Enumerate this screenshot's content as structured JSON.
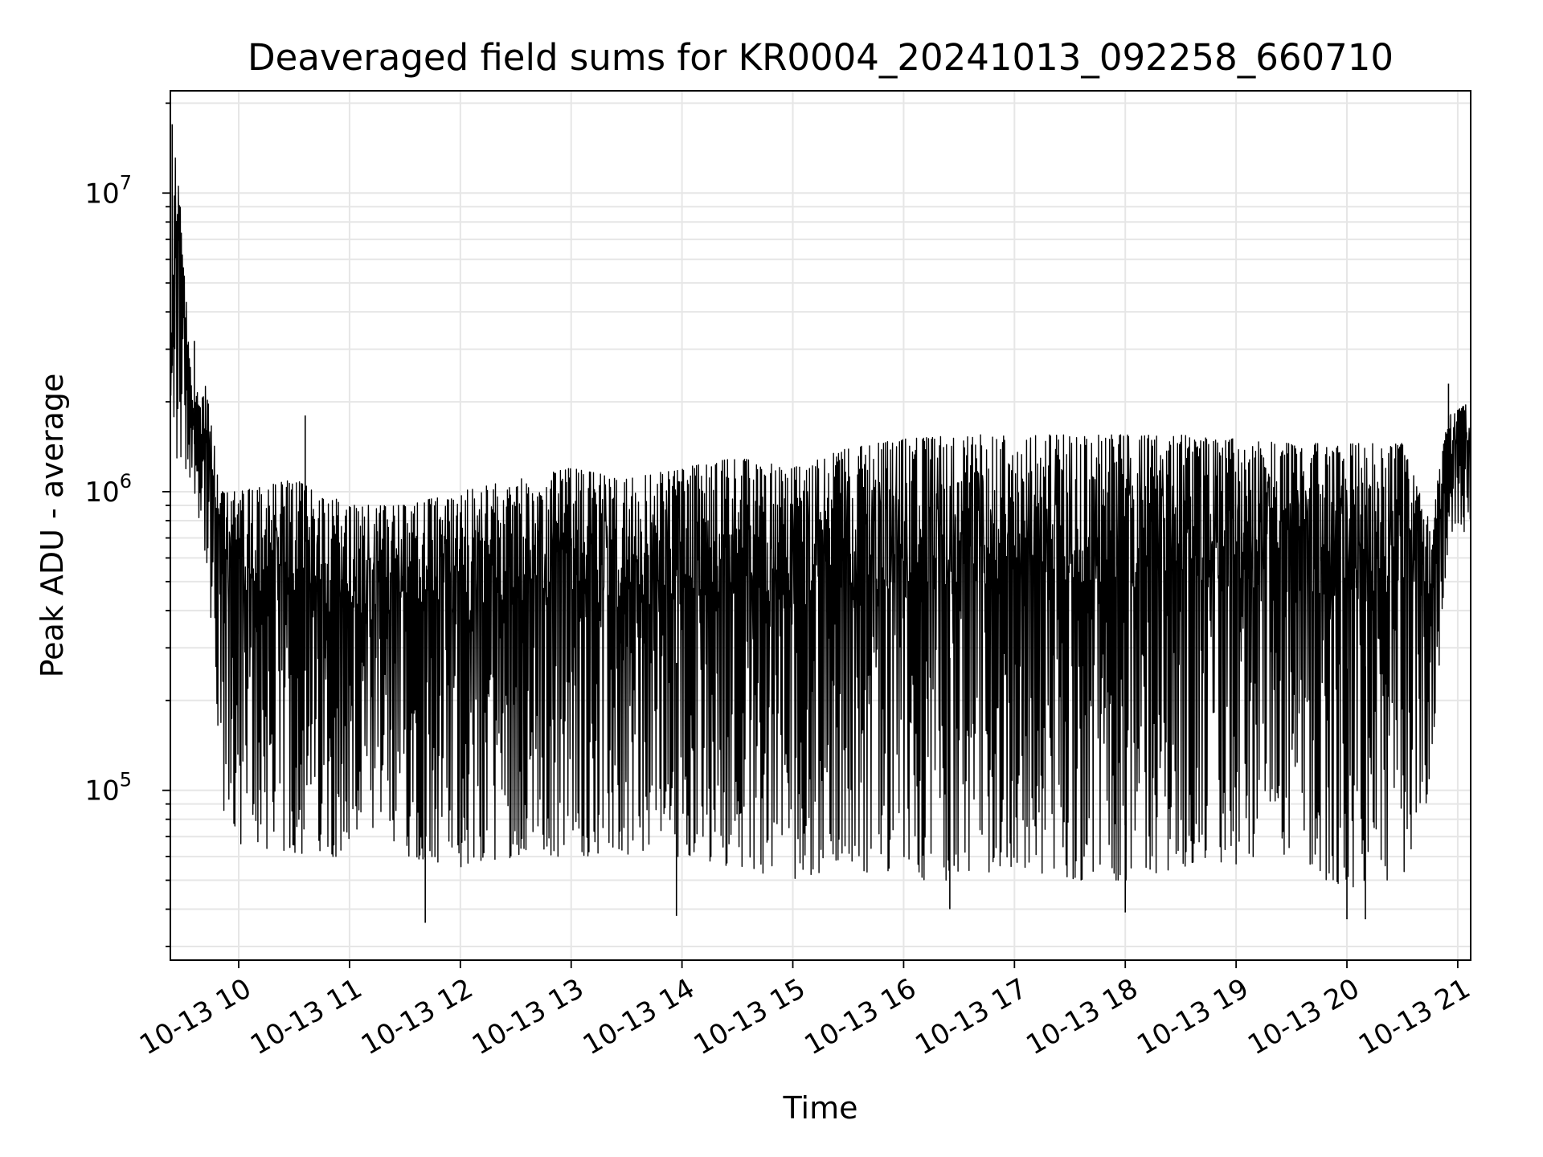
{
  "chart_data": {
    "type": "line",
    "title": "Deaveraged field sums for KR0004_20241013_092258_660710",
    "xlabel": "Time",
    "ylabel": "Peak ADU - average",
    "yscale": "log",
    "xlim": [
      "10-13 09:23",
      "10-13 21:07"
    ],
    "ylim": [
      27000,
      22000000
    ],
    "grid": true,
    "x_ticks": [
      "10-13 10",
      "10-13 11",
      "10-13 12",
      "10-13 13",
      "10-13 14",
      "10-13 15",
      "10-13 16",
      "10-13 17",
      "10-13 18",
      "10-13 19",
      "10-13 20",
      "10-13 21"
    ],
    "y_ticks": [
      {
        "base": "10",
        "exp": "5"
      },
      {
        "base": "10",
        "exp": "6"
      },
      {
        "base": "10",
        "exp": "7"
      }
    ],
    "series": [
      {
        "line_color": "#000000",
        "envelope_time": [
          "10-13 09:23",
          "10-13 09:26",
          "10-13 09:35",
          "10-13 09:42",
          "10-13 09:50",
          "10-13 10:00",
          "10-13 10:30",
          "10-13 11:00",
          "10-13 11:30",
          "10-13 12:00",
          "10-13 12:30",
          "10-13 13:00",
          "10-13 13:30",
          "10-13 14:00",
          "10-13 14:30",
          "10-13 15:00",
          "10-13 15:30",
          "10-13 16:00",
          "10-13 16:30",
          "10-13 17:00",
          "10-13 17:30",
          "10-13 18:00",
          "10-13 18:30",
          "10-13 19:00",
          "10-13 19:30",
          "10-13 20:00",
          "10-13 20:30",
          "10-13 20:45",
          "10-13 20:55",
          "10-13 21:07"
        ],
        "upper": [
          3000000,
          16000000,
          2000000,
          2500000,
          1000000,
          1000000,
          1100000,
          900000,
          900000,
          1000000,
          1100000,
          1200000,
          1100000,
          1200000,
          1300000,
          1200000,
          1400000,
          1500000,
          1550000,
          1550000,
          1550000,
          1550000,
          1550000,
          1500000,
          1450000,
          1450000,
          1450000,
          800000,
          1800000,
          2000000
        ],
        "lower": [
          1400000,
          1200000,
          1100000,
          600000,
          80000,
          65000,
          60000,
          60000,
          60000,
          55000,
          60000,
          60000,
          60000,
          60000,
          55000,
          50000,
          55000,
          50000,
          50000,
          55000,
          50000,
          50000,
          55000,
          55000,
          60000,
          45000,
          50000,
          100000,
          700000,
          750000
        ],
        "outliers": [
          {
            "t": "10-13 09:24",
            "v": 17000000
          },
          {
            "t": "10-13 09:36",
            "v": 3200000
          },
          {
            "t": "10-13 10:36",
            "v": 1800000
          },
          {
            "t": "10-13 11:41",
            "v": 36000
          },
          {
            "t": "10-13 13:57",
            "v": 38000
          },
          {
            "t": "10-13 16:25",
            "v": 40000
          },
          {
            "t": "10-13 18:00",
            "v": 39000
          },
          {
            "t": "10-13 20:00",
            "v": 37000
          },
          {
            "t": "10-13 20:10",
            "v": 37000
          },
          {
            "t": "10-13 20:55",
            "v": 2300000
          }
        ]
      }
    ]
  }
}
